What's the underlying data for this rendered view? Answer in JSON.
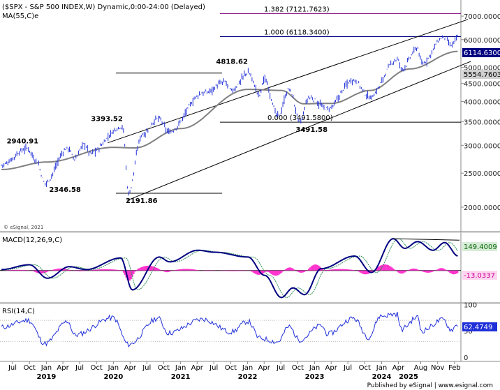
{
  "window": {
    "title": "($SPX - S&P 500 INDEX,W) Dynamic,0:00-24:00 (Delayed)",
    "ma_label": "MA(55,C)e",
    "watermark": "© eSignal, 2021",
    "footer": "Published by eSignal | www.esignal.com"
  },
  "colors": {
    "price": "#1f2fd8",
    "ma": "#808080",
    "fib_high": "#800080",
    "fib_mid": "#000080",
    "macd_hist": "#ff33cc",
    "macd_signal": "#2e8b57",
    "channel": "#000000",
    "price_box": "#000080"
  },
  "price_panel": {
    "fib_levels": [
      {
        "label": "1.382 (7121.7623)",
        "value": 7121.7623
      },
      {
        "label": "1.000 (6118.3400)",
        "value": 6118.34
      },
      {
        "label": "0.000 (3491.5800)",
        "value": 3491.58
      }
    ],
    "annotations": [
      {
        "label": "2940.91",
        "date": "2018-09-21",
        "value": 2940.91
      },
      {
        "label": "2346.58",
        "date": "2018-12-24",
        "value": 2346.58
      },
      {
        "label": "3393.52",
        "date": "2020-02-19",
        "value": 3393.52
      },
      {
        "label": "2191.86",
        "date": "2020-03-23",
        "value": 2191.86
      },
      {
        "label": "4818.62",
        "date": "2022-01-04",
        "value": 4818.62
      },
      {
        "label": "3491.58",
        "date": "2022-10-13",
        "value": 3491.58
      }
    ],
    "last_price": "6114.6300",
    "ma_value": "5554.7603",
    "y_ticks": [
      "7000.0000",
      "6000.0000",
      "5000.0000",
      "4500.0000",
      "4000.0000",
      "3500.0000",
      "3000.0000",
      "2500.0000",
      "2000.0000"
    ],
    "y_tick_values": [
      7000,
      6000,
      5000,
      4500,
      4000,
      3500,
      3000,
      2500,
      2000
    ],
    "y_range": [
      1800,
      7500
    ]
  },
  "macd_panel": {
    "label": "MACD(12,26,9,C)",
    "macd_value": "149.4009",
    "hist_value": "-13.0337"
  },
  "rsi_panel": {
    "label": "RSI(14,C)",
    "value": "62.4749",
    "y_ticks": [
      "100",
      "50",
      "0"
    ],
    "y_tick_values": [
      100,
      50,
      0
    ]
  },
  "x_axis": {
    "month_labels": [
      "Jul",
      "Oct",
      "Jan",
      "Apr",
      "Jul",
      "Oct",
      "Jan",
      "Apr",
      "Jul",
      "Oct",
      "Jan",
      "Apr",
      "Jul",
      "Oct",
      "Jan",
      "Apr",
      "Jul",
      "Oct",
      "Jan",
      "Apr",
      "Jul",
      "Oct",
      "Jan",
      "Apr",
      "Aug",
      "Nov",
      "Feb"
    ],
    "year_labels": [
      "2019",
      "2020",
      "2021",
      "2022",
      "2023",
      "2024",
      "2025"
    ]
  },
  "chart_data": {
    "type": "line",
    "title": "($SPX - S&P 500 INDEX,W) Dynamic,0:00-24:00 (Delayed)",
    "x_range": [
      "2018-05-01",
      "2025-02-28"
    ],
    "price_anchors": [
      {
        "date": "2018-05-01",
        "value": 2640
      },
      {
        "date": "2018-09-21",
        "value": 2940.91
      },
      {
        "date": "2018-11-05",
        "value": 2720
      },
      {
        "date": "2018-12-24",
        "value": 2346.58
      },
      {
        "date": "2019-04-30",
        "value": 2945
      },
      {
        "date": "2019-06-03",
        "value": 2745
      },
      {
        "date": "2019-07-26",
        "value": 3025
      },
      {
        "date": "2019-08-26",
        "value": 2850
      },
      {
        "date": "2020-02-19",
        "value": 3393.52
      },
      {
        "date": "2020-03-23",
        "value": 2191.86
      },
      {
        "date": "2020-06-08",
        "value": 3230
      },
      {
        "date": "2020-09-02",
        "value": 3580
      },
      {
        "date": "2020-10-30",
        "value": 3270
      },
      {
        "date": "2021-05-07",
        "value": 4230
      },
      {
        "date": "2021-09-02",
        "value": 4540
      },
      {
        "date": "2021-10-04",
        "value": 4300
      },
      {
        "date": "2022-01-04",
        "value": 4818.62
      },
      {
        "date": "2022-03-08",
        "value": 4170
      },
      {
        "date": "2022-03-29",
        "value": 4630
      },
      {
        "date": "2022-06-16",
        "value": 3640
      },
      {
        "date": "2022-08-16",
        "value": 4325
      },
      {
        "date": "2022-10-13",
        "value": 3491.58
      },
      {
        "date": "2022-12-01",
        "value": 4100
      },
      {
        "date": "2023-03-13",
        "value": 3810
      },
      {
        "date": "2023-07-31",
        "value": 4610
      },
      {
        "date": "2023-10-27",
        "value": 4110
      },
      {
        "date": "2024-03-28",
        "value": 5265
      },
      {
        "date": "2024-04-19",
        "value": 4950
      },
      {
        "date": "2024-07-16",
        "value": 5670
      },
      {
        "date": "2024-08-05",
        "value": 5120
      },
      {
        "date": "2024-12-06",
        "value": 6090
      },
      {
        "date": "2025-01-13",
        "value": 5770
      },
      {
        "date": "2025-02-21",
        "value": 6114.63
      }
    ],
    "ma_anchors": [
      {
        "date": "2018-05-01",
        "value": 2560
      },
      {
        "date": "2019-01-07",
        "value": 2690
      },
      {
        "date": "2019-12-30",
        "value": 2960
      },
      {
        "date": "2020-04-27",
        "value": 2950
      },
      {
        "date": "2021-01-04",
        "value": 3350
      },
      {
        "date": "2022-01-03",
        "value": 4330
      },
      {
        "date": "2022-07-04",
        "value": 4300
      },
      {
        "date": "2022-11-01",
        "value": 3940
      },
      {
        "date": "2023-04-03",
        "value": 3950
      },
      {
        "date": "2023-11-01",
        "value": 4300
      },
      {
        "date": "2024-06-03",
        "value": 4950
      },
      {
        "date": "2025-02-21",
        "value": 5554.7603
      }
    ],
    "macd_anchors": [
      {
        "date": "2018-05-01",
        "value": 10
      },
      {
        "date": "2018-10-01",
        "value": 60
      },
      {
        "date": "2019-01-07",
        "value": -80
      },
      {
        "date": "2019-05-06",
        "value": 40
      },
      {
        "date": "2019-08-05",
        "value": 10
      },
      {
        "date": "2020-02-10",
        "value": 130
      },
      {
        "date": "2020-04-13",
        "value": -200
      },
      {
        "date": "2020-09-07",
        "value": 140
      },
      {
        "date": "2020-11-02",
        "value": 90
      },
      {
        "date": "2021-04-05",
        "value": 210
      },
      {
        "date": "2021-07-05",
        "value": 190
      },
      {
        "date": "2022-01-03",
        "value": 140
      },
      {
        "date": "2022-04-04",
        "value": -50
      },
      {
        "date": "2022-07-04",
        "value": -280
      },
      {
        "date": "2022-09-05",
        "value": -180
      },
      {
        "date": "2022-11-07",
        "value": -250
      },
      {
        "date": "2023-02-06",
        "value": 20
      },
      {
        "date": "2023-08-07",
        "value": 150
      },
      {
        "date": "2023-11-06",
        "value": -20
      },
      {
        "date": "2024-03-04",
        "value": 330
      },
      {
        "date": "2024-05-06",
        "value": 230
      },
      {
        "date": "2024-07-15",
        "value": 300
      },
      {
        "date": "2024-10-07",
        "value": 210
      },
      {
        "date": "2024-12-09",
        "value": 290
      },
      {
        "date": "2025-02-21",
        "value": 149.4009
      }
    ],
    "rsi_anchors": [
      {
        "date": "2018-05-01",
        "value": 57
      },
      {
        "date": "2018-09-24",
        "value": 70
      },
      {
        "date": "2018-12-24",
        "value": 26
      },
      {
        "date": "2019-04-29",
        "value": 68
      },
      {
        "date": "2019-06-03",
        "value": 42
      },
      {
        "date": "2019-12-30",
        "value": 75
      },
      {
        "date": "2020-03-23",
        "value": 24
      },
      {
        "date": "2020-08-31",
        "value": 74
      },
      {
        "date": "2020-10-26",
        "value": 46
      },
      {
        "date": "2021-05-03",
        "value": 72
      },
      {
        "date": "2021-10-04",
        "value": 48
      },
      {
        "date": "2022-01-03",
        "value": 68
      },
      {
        "date": "2022-03-07",
        "value": 36
      },
      {
        "date": "2022-06-13",
        "value": 29
      },
      {
        "date": "2022-08-15",
        "value": 58
      },
      {
        "date": "2022-10-10",
        "value": 33
      },
      {
        "date": "2023-02-06",
        "value": 60
      },
      {
        "date": "2023-03-13",
        "value": 44
      },
      {
        "date": "2023-07-31",
        "value": 74
      },
      {
        "date": "2023-10-23",
        "value": 38
      },
      {
        "date": "2023-12-25",
        "value": 78
      },
      {
        "date": "2024-03-25",
        "value": 82
      },
      {
        "date": "2024-04-15",
        "value": 53
      },
      {
        "date": "2024-07-15",
        "value": 76
      },
      {
        "date": "2024-08-05",
        "value": 50
      },
      {
        "date": "2024-12-02",
        "value": 71
      },
      {
        "date": "2025-01-13",
        "value": 52
      },
      {
        "date": "2025-02-21",
        "value": 62.4749
      }
    ]
  }
}
